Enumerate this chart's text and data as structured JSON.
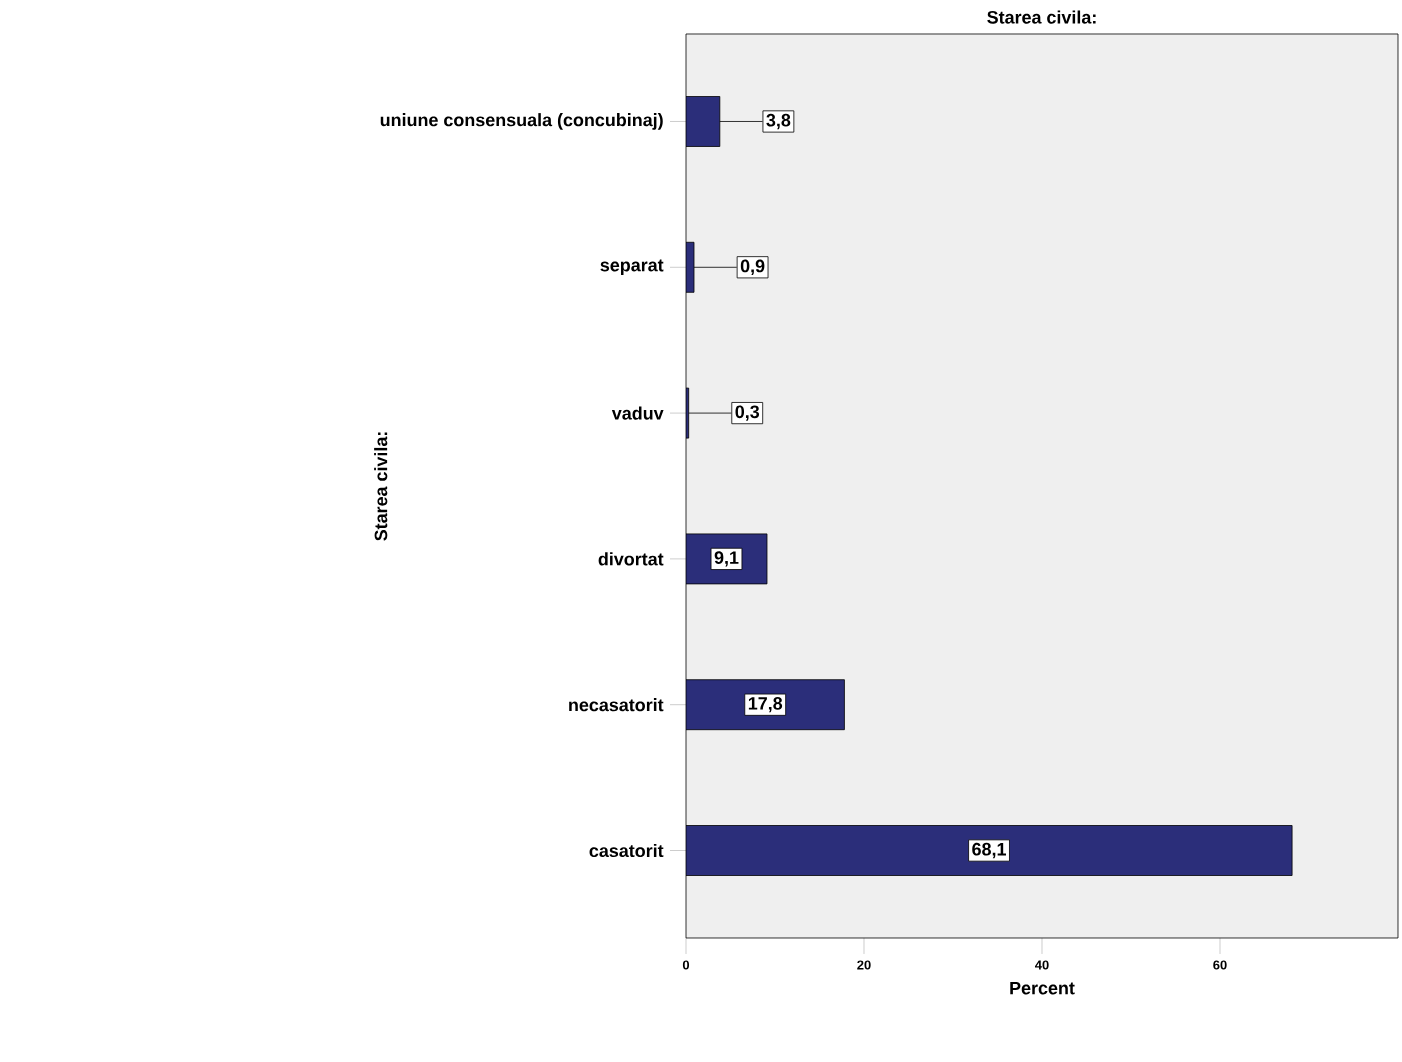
{
  "chart_data": {
    "type": "bar",
    "orientation": "horizontal",
    "title": "Starea civila:",
    "xlabel": "Percent",
    "ylabel": "Starea civila:",
    "categories": [
      "uniune consensuala (concubinaj)",
      "separat",
      "vaduv",
      "divortat",
      "necasatorit",
      "casatorit"
    ],
    "values": [
      3.8,
      0.9,
      0.3,
      9.1,
      17.8,
      68.1
    ],
    "value_labels": [
      "3,8",
      "0,9",
      "0,3",
      "9,1",
      "17,8",
      "68,1"
    ],
    "color": "#2b2e7a",
    "xlim": [
      0,
      80
    ],
    "xticks": [
      0,
      20,
      40,
      60
    ],
    "grid": false
  }
}
